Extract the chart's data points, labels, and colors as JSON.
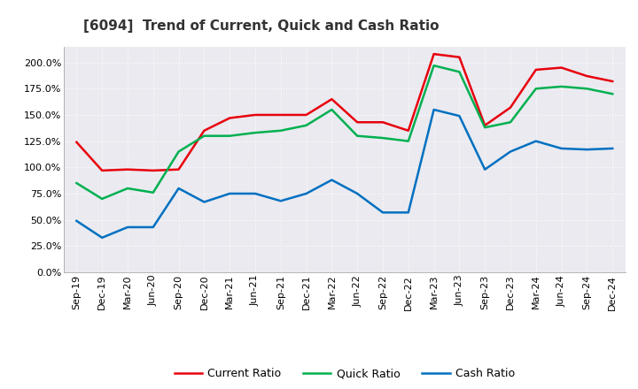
{
  "title": "[6094]  Trend of Current, Quick and Cash Ratio",
  "labels": [
    "Sep-19",
    "Dec-19",
    "Mar-20",
    "Jun-20",
    "Sep-20",
    "Dec-20",
    "Mar-21",
    "Jun-21",
    "Sep-21",
    "Dec-21",
    "Mar-22",
    "Jun-22",
    "Sep-22",
    "Dec-22",
    "Mar-23",
    "Jun-23",
    "Sep-23",
    "Dec-23",
    "Mar-24",
    "Jun-24",
    "Sep-24",
    "Dec-24"
  ],
  "current_ratio": [
    1.24,
    0.97,
    0.98,
    0.97,
    0.98,
    1.35,
    1.47,
    1.5,
    1.5,
    1.5,
    1.65,
    1.43,
    1.43,
    1.35,
    2.08,
    2.05,
    1.4,
    1.57,
    1.93,
    1.95,
    1.87,
    1.82
  ],
  "quick_ratio": [
    0.85,
    0.7,
    0.8,
    0.76,
    1.15,
    1.3,
    1.3,
    1.33,
    1.35,
    1.4,
    1.55,
    1.3,
    1.28,
    1.25,
    1.97,
    1.91,
    1.38,
    1.43,
    1.75,
    1.77,
    1.75,
    1.7
  ],
  "cash_ratio": [
    0.49,
    0.33,
    0.43,
    0.43,
    0.8,
    0.67,
    0.75,
    0.75,
    0.68,
    0.75,
    0.88,
    0.75,
    0.57,
    0.57,
    1.55,
    1.49,
    0.98,
    1.15,
    1.25,
    1.18,
    1.17,
    1.18
  ],
  "current_color": "#e8000d",
  "quick_color": "#00b050",
  "cash_color": "#0070c0",
  "bg_color": "#ffffff",
  "plot_bg_color": "#eaeaf0",
  "grid_color": "#ffffff",
  "linewidth": 1.8,
  "title_fontsize": 11,
  "tick_fontsize": 8,
  "legend_labels": [
    "Current Ratio",
    "Quick Ratio",
    "Cash Ratio"
  ],
  "ytick_vals": [
    0.0,
    0.25,
    0.5,
    0.75,
    1.0,
    1.25,
    1.5,
    1.75,
    2.0
  ],
  "ytick_labels": [
    "0.0%",
    "25.0%",
    "50.0%",
    "75.0%",
    "100.0%",
    "125.0%",
    "150.0%",
    "175.0%",
    "200.0%"
  ]
}
